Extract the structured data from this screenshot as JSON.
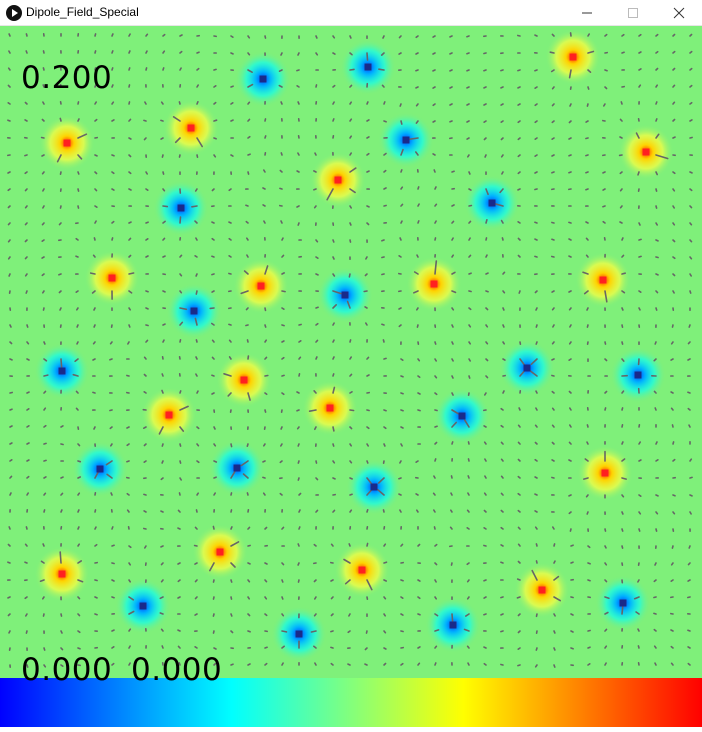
{
  "window": {
    "title": "Dipole_Field_Special",
    "minimize_icon": "minimize-icon",
    "maximize_icon": "maximize-icon",
    "close_icon": "close-icon"
  },
  "overlay": {
    "scale_value": "0.200",
    "coord_x": "0.000",
    "coord_y": "0.000"
  },
  "colors": {
    "background": "#7ff07a",
    "positive_charge": "#ff2020",
    "negative_charge": "#1a2a8a",
    "arrow": "#666666",
    "colorbar": [
      "#0000ff",
      "#00ffff",
      "#ffff00",
      "#ff0000"
    ]
  },
  "charges": {
    "positive": [
      [
        573,
        57
      ],
      [
        67,
        143
      ],
      [
        191,
        128
      ],
      [
        646,
        152
      ],
      [
        338,
        180
      ],
      [
        112,
        278
      ],
      [
        261,
        286
      ],
      [
        434,
        284
      ],
      [
        603,
        280
      ],
      [
        244,
        380
      ],
      [
        330,
        408
      ],
      [
        169,
        415
      ],
      [
        605,
        473
      ],
      [
        220,
        552
      ],
      [
        62,
        574
      ],
      [
        362,
        570
      ],
      [
        542,
        590
      ]
    ],
    "negative": [
      [
        263,
        79
      ],
      [
        368,
        67
      ],
      [
        406,
        140
      ],
      [
        181,
        208
      ],
      [
        492,
        203
      ],
      [
        194,
        311
      ],
      [
        345,
        295
      ],
      [
        62,
        371
      ],
      [
        527,
        368
      ],
      [
        638,
        375
      ],
      [
        462,
        416
      ],
      [
        100,
        469
      ],
      [
        237,
        468
      ],
      [
        374,
        487
      ],
      [
        143,
        606
      ],
      [
        299,
        634
      ],
      [
        453,
        625
      ],
      [
        623,
        603
      ]
    ]
  }
}
